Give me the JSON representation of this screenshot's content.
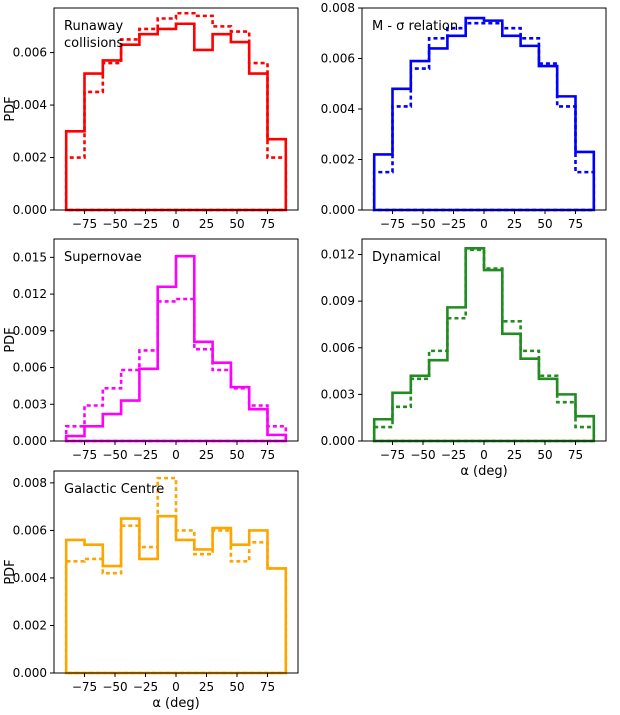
{
  "chart_data": [
    {
      "type": "step-histogram",
      "title": "Runaway collisions",
      "title_lines": [
        "Runaway",
        "collisions"
      ],
      "color": "#ff0000",
      "xlabel": "",
      "ylabel": "PDF",
      "xlim": [
        -100,
        100
      ],
      "ylim": [
        0,
        0.0077
      ],
      "xticks": [
        -75,
        -50,
        -25,
        0,
        25,
        50,
        75
      ],
      "xtick_labels": [
        "−75",
        "−50",
        "−25",
        "0",
        "25",
        "50",
        "75"
      ],
      "yticks": [
        0,
        0.002,
        0.004,
        0.006
      ],
      "ytick_labels": [
        "0.000",
        "0.002",
        "0.004",
        "0.006"
      ],
      "bin_edges": [
        -90,
        -75,
        -60,
        -45,
        -30,
        -15,
        0,
        15,
        30,
        45,
        60,
        75,
        90
      ],
      "series": [
        {
          "name": "solid",
          "style": "solid",
          "values": [
            0.003,
            0.0052,
            0.0057,
            0.0063,
            0.0067,
            0.0069,
            0.0071,
            0.0061,
            0.0067,
            0.0064,
            0.0052,
            0.0027
          ]
        },
        {
          "name": "dotted",
          "style": "dotted",
          "values": [
            0.002,
            0.0045,
            0.0056,
            0.0065,
            0.0069,
            0.0073,
            0.0075,
            0.0074,
            0.007,
            0.0068,
            0.0056,
            0.002
          ]
        }
      ]
    },
    {
      "type": "step-histogram",
      "title": "M - σ relation",
      "title_lines": [
        "M - σ relation"
      ],
      "color": "#0000ff",
      "xlabel": "",
      "ylabel": "",
      "xlim": [
        -100,
        100
      ],
      "ylim": [
        0,
        0.008
      ],
      "xticks": [
        -75,
        -50,
        -25,
        0,
        25,
        50,
        75
      ],
      "xtick_labels": [
        "−75",
        "−50",
        "−25",
        "0",
        "25",
        "50",
        "75"
      ],
      "yticks": [
        0,
        0.002,
        0.004,
        0.006,
        0.008
      ],
      "ytick_labels": [
        "0.000",
        "0.002",
        "0.004",
        "0.006",
        "0.008"
      ],
      "bin_edges": [
        -90,
        -75,
        -60,
        -45,
        -30,
        -15,
        0,
        15,
        30,
        45,
        60,
        75,
        90
      ],
      "series": [
        {
          "name": "solid",
          "style": "solid",
          "values": [
            0.0022,
            0.0048,
            0.0059,
            0.0064,
            0.0069,
            0.0076,
            0.0075,
            0.0069,
            0.0065,
            0.0057,
            0.0045,
            0.0023
          ]
        },
        {
          "name": "dotted",
          "style": "dotted",
          "values": [
            0.0015,
            0.0041,
            0.0056,
            0.0068,
            0.0072,
            0.0074,
            0.0074,
            0.0072,
            0.0068,
            0.0058,
            0.0041,
            0.0015
          ]
        }
      ]
    },
    {
      "type": "step-histogram",
      "title": "Supernovae",
      "title_lines": [
        "Supernovae"
      ],
      "color": "#ff00ff",
      "xlabel": "",
      "ylabel": "PDF",
      "xlim": [
        -100,
        100
      ],
      "ylim": [
        0,
        0.0165
      ],
      "xticks": [
        -75,
        -50,
        -25,
        0,
        25,
        50,
        75
      ],
      "xtick_labels": [
        "−75",
        "−50",
        "−25",
        "0",
        "25",
        "50",
        "75"
      ],
      "yticks": [
        0,
        0.003,
        0.006,
        0.009,
        0.012,
        0.015
      ],
      "ytick_labels": [
        "0.000",
        "0.003",
        "0.006",
        "0.009",
        "0.012",
        "0.015"
      ],
      "bin_edges": [
        -90,
        -75,
        -60,
        -45,
        -30,
        -15,
        0,
        15,
        30,
        45,
        60,
        75,
        90
      ],
      "series": [
        {
          "name": "solid",
          "style": "solid",
          "values": [
            0.0004,
            0.0012,
            0.0022,
            0.0033,
            0.0059,
            0.0126,
            0.0151,
            0.0081,
            0.0064,
            0.0044,
            0.0026,
            0.0005
          ]
        },
        {
          "name": "dotted",
          "style": "dotted",
          "values": [
            0.0012,
            0.0029,
            0.0043,
            0.0058,
            0.0074,
            0.0114,
            0.0116,
            0.0075,
            0.0058,
            0.0043,
            0.0029,
            0.0012
          ]
        }
      ]
    },
    {
      "type": "step-histogram",
      "title": "Dynamical",
      "title_lines": [
        "Dynamical"
      ],
      "color": "#228b22",
      "xlabel": "α (deg)",
      "ylabel": "",
      "xlim": [
        -100,
        100
      ],
      "ylim": [
        0,
        0.013
      ],
      "xticks": [
        -75,
        -50,
        -25,
        0,
        25,
        50,
        75
      ],
      "xtick_labels": [
        "−75",
        "−50",
        "−25",
        "0",
        "25",
        "50",
        "75"
      ],
      "yticks": [
        0,
        0.003,
        0.006,
        0.009,
        0.012
      ],
      "ytick_labels": [
        "0.000",
        "0.003",
        "0.006",
        "0.009",
        "0.012"
      ],
      "bin_edges": [
        -90,
        -75,
        -60,
        -45,
        -30,
        -15,
        0,
        15,
        30,
        45,
        60,
        75,
        90
      ],
      "series": [
        {
          "name": "solid",
          "style": "solid",
          "values": [
            0.0014,
            0.0031,
            0.0042,
            0.0052,
            0.0086,
            0.0124,
            0.011,
            0.0069,
            0.0053,
            0.004,
            0.003,
            0.0016
          ]
        },
        {
          "name": "dotted",
          "style": "dotted",
          "values": [
            0.0009,
            0.0022,
            0.004,
            0.0058,
            0.0079,
            0.0123,
            0.0111,
            0.0077,
            0.0058,
            0.0042,
            0.0025,
            0.0009
          ]
        }
      ]
    },
    {
      "type": "step-histogram",
      "title": "Galactic Centre",
      "title_lines": [
        "Galactic Centre"
      ],
      "color": "#ffa500",
      "xlabel": "α (deg)",
      "ylabel": "PDF",
      "xlim": [
        -100,
        100
      ],
      "ylim": [
        0,
        0.0085
      ],
      "xticks": [
        -75,
        -50,
        -25,
        0,
        25,
        50,
        75
      ],
      "xtick_labels": [
        "−75",
        "−50",
        "−25",
        "0",
        "25",
        "50",
        "75"
      ],
      "yticks": [
        0,
        0.002,
        0.004,
        0.006,
        0.008
      ],
      "ytick_labels": [
        "0.000",
        "0.002",
        "0.004",
        "0.006",
        "0.008"
      ],
      "bin_edges": [
        -90,
        -75,
        -60,
        -45,
        -30,
        -15,
        0,
        15,
        30,
        45,
        60,
        75,
        90
      ],
      "series": [
        {
          "name": "solid",
          "style": "solid",
          "values": [
            0.0056,
            0.0054,
            0.0045,
            0.0065,
            0.0048,
            0.0066,
            0.0056,
            0.0052,
            0.0061,
            0.0054,
            0.006,
            0.0044
          ]
        },
        {
          "name": "dotted",
          "style": "dotted",
          "values": [
            0.0047,
            0.0048,
            0.0042,
            0.0062,
            0.0053,
            0.0082,
            0.006,
            0.005,
            0.006,
            0.0047,
            0.0055,
            0.0044
          ]
        }
      ]
    }
  ]
}
